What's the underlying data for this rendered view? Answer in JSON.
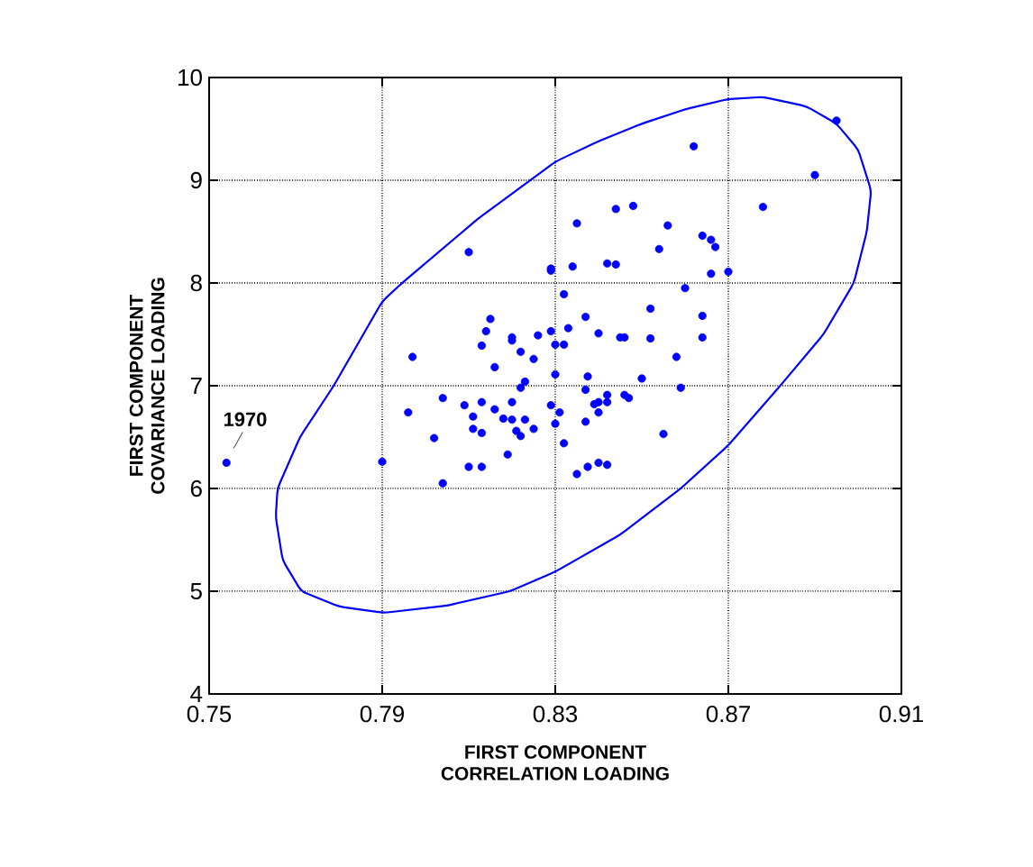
{
  "chart_data": {
    "type": "scatter",
    "xlabel": "FIRST COMPONENT\nCORRELATION LOADING",
    "ylabel": "FIRST COMPONENT\nCOVARIANCE LOADING",
    "xlim": [
      0.75,
      0.91
    ],
    "xticks": [
      0.75,
      0.79,
      0.83,
      0.87,
      0.91
    ],
    "ylim": [
      4,
      10
    ],
    "yticks": [
      4,
      5,
      6,
      7,
      8,
      9,
      10
    ],
    "grid": true,
    "annotations": [
      {
        "text": "1970",
        "x": 0.754,
        "y": 6.25
      }
    ],
    "series": [
      {
        "marker": "circle",
        "color": "#0000ff",
        "x": [
          0.81,
          0.829,
          0.815,
          0.814,
          0.813,
          0.82,
          0.82,
          0.822,
          0.825,
          0.826,
          0.829,
          0.797,
          0.816,
          0.895,
          0.862,
          0.89,
          0.878,
          0.844,
          0.848,
          0.835,
          0.856,
          0.864,
          0.866,
          0.867,
          0.854,
          0.829,
          0.834,
          0.842,
          0.844,
          0.866,
          0.87,
          0.86,
          0.832,
          0.852,
          0.837,
          0.864,
          0.833,
          0.84,
          0.845,
          0.846,
          0.852,
          0.864,
          0.83,
          0.832,
          0.858,
          0.83,
          0.8375,
          0.85,
          0.754,
          0.79,
          0.796,
          0.804,
          0.809,
          0.811,
          0.813,
          0.816,
          0.82,
          0.823,
          0.822,
          0.818,
          0.82,
          0.823,
          0.825,
          0.822,
          0.821,
          0.811,
          0.813,
          0.802,
          0.819,
          0.81,
          0.813,
          0.804,
          0.829,
          0.83,
          0.859,
          0.837,
          0.831,
          0.839,
          0.84,
          0.842,
          0.842,
          0.846,
          0.847,
          0.837,
          0.84,
          0.832,
          0.855,
          0.835,
          0.8375,
          0.84,
          0.842
        ],
        "values": [
          8.3,
          8.14,
          7.65,
          7.53,
          7.39,
          7.47,
          7.44,
          7.33,
          7.26,
          7.49,
          7.53,
          7.28,
          7.18,
          9.58,
          9.33,
          9.05,
          8.74,
          8.72,
          8.75,
          8.58,
          8.56,
          8.46,
          8.42,
          8.35,
          8.33,
          8.12,
          8.16,
          8.19,
          8.18,
          8.09,
          8.11,
          7.95,
          7.89,
          7.75,
          7.67,
          7.68,
          7.56,
          7.51,
          7.47,
          7.47,
          7.46,
          7.47,
          7.4,
          7.4,
          7.28,
          7.11,
          7.09,
          7.07,
          6.25,
          6.26,
          6.74,
          6.88,
          6.81,
          6.7,
          6.84,
          6.77,
          6.84,
          7.04,
          6.98,
          6.68,
          6.67,
          6.67,
          6.58,
          6.51,
          6.56,
          6.58,
          6.54,
          6.49,
          6.33,
          6.21,
          6.21,
          6.05,
          6.81,
          6.63,
          6.98,
          6.96,
          6.74,
          6.82,
          6.84,
          6.91,
          6.84,
          6.91,
          6.88,
          6.65,
          6.74,
          6.44,
          6.53,
          6.14,
          6.21,
          6.25,
          6.23
        ]
      }
    ]
  }
}
